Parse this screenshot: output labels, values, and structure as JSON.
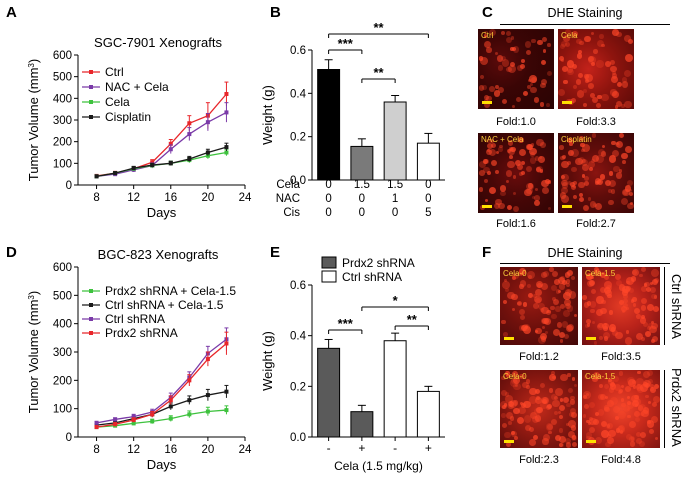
{
  "panels": {
    "A": "A",
    "B": "B",
    "C": "C",
    "D": "D",
    "E": "E",
    "F": "F"
  },
  "chart_data": [
    {
      "id": "A",
      "type": "line",
      "title": "SGC-7901 Xenografts",
      "xlabel": "Days",
      "ylabel": "Tumor Volume (mm³)",
      "xlim": [
        6,
        24
      ],
      "ylim": [
        0,
        600
      ],
      "xticks": [
        8,
        12,
        16,
        20,
        24
      ],
      "yticks": [
        0,
        100,
        200,
        300,
        400,
        500,
        600
      ],
      "legend_position": "top-left",
      "series": [
        {
          "name": "Ctrl",
          "color": "#e8262a",
          "marker": "square",
          "x": [
            8,
            10,
            12,
            14,
            16,
            18,
            20,
            22
          ],
          "y": [
            42,
            55,
            75,
            105,
            190,
            285,
            320,
            420
          ],
          "err": [
            6,
            8,
            10,
            12,
            20,
            35,
            60,
            55
          ]
        },
        {
          "name": "NAC + Cela",
          "color": "#7a3aa8",
          "marker": "square",
          "x": [
            8,
            10,
            12,
            14,
            16,
            18,
            20,
            22
          ],
          "y": [
            40,
            50,
            70,
            90,
            165,
            235,
            290,
            335
          ],
          "err": [
            5,
            8,
            10,
            12,
            20,
            30,
            40,
            45
          ]
        },
        {
          "name": "Cela",
          "color": "#3ec23e",
          "marker": "square",
          "x": [
            8,
            10,
            12,
            14,
            16,
            18,
            20,
            22
          ],
          "y": [
            40,
            55,
            75,
            90,
            100,
            115,
            135,
            150
          ],
          "err": [
            5,
            6,
            8,
            8,
            10,
            12,
            14,
            15
          ]
        },
        {
          "name": "Cisplatin",
          "color": "#1a1a1a",
          "marker": "square",
          "x": [
            8,
            10,
            12,
            14,
            16,
            18,
            20,
            22
          ],
          "y": [
            40,
            55,
            78,
            92,
            100,
            120,
            150,
            175
          ],
          "err": [
            5,
            6,
            8,
            8,
            10,
            12,
            15,
            18
          ]
        }
      ]
    },
    {
      "id": "B",
      "type": "bar",
      "ylabel": "Weight (g)",
      "ylim": [
        0,
        0.6
      ],
      "yticks": [
        "0.0",
        "0.2",
        "0.4",
        "0.6"
      ],
      "categories": [
        "1",
        "2",
        "3",
        "4"
      ],
      "values": [
        0.51,
        0.155,
        0.36,
        0.17
      ],
      "errors": [
        0.045,
        0.035,
        0.03,
        0.045
      ],
      "colors": [
        "#000000",
        "#7a7a7a",
        "#cfcfcf",
        "#ffffff"
      ],
      "conditions": [
        {
          "label": "Cela",
          "values": [
            "0",
            "1.5",
            "1.5",
            "0"
          ]
        },
        {
          "label": "NAC",
          "values": [
            "0",
            "0",
            "1",
            "0"
          ]
        },
        {
          "label": "Cis",
          "values": [
            "0",
            "0",
            "0",
            "5"
          ]
        }
      ],
      "significance": [
        {
          "from": 1,
          "to": 4,
          "label": "**"
        },
        {
          "from": 1,
          "to": 2,
          "label": "***"
        },
        {
          "from": 2,
          "to": 3,
          "label": "**"
        }
      ]
    },
    {
      "id": "D",
      "type": "line",
      "title": "BGC-823 Xenografts",
      "xlabel": "Days",
      "ylabel": "Tumor Volume (mm³)",
      "xlim": [
        6,
        24
      ],
      "ylim": [
        0,
        600
      ],
      "xticks": [
        8,
        12,
        16,
        20,
        24
      ],
      "yticks": [
        0,
        100,
        200,
        300,
        400,
        500,
        600
      ],
      "legend_position": "top-left",
      "series": [
        {
          "name": "Prdx2 shRNA + Cela-1.5",
          "color": "#3ec23e",
          "marker": "square",
          "x": [
            8,
            10,
            12,
            14,
            16,
            18,
            20,
            22
          ],
          "y": [
            35,
            40,
            48,
            55,
            65,
            80,
            90,
            95
          ],
          "err": [
            4,
            5,
            6,
            8,
            10,
            12,
            15,
            15
          ]
        },
        {
          "name": "Ctrl shRNA + Cela-1.5",
          "color": "#1a1a1a",
          "marker": "square",
          "x": [
            8,
            10,
            12,
            14,
            16,
            18,
            20,
            22
          ],
          "y": [
            42,
            50,
            65,
            80,
            108,
            130,
            148,
            160
          ],
          "err": [
            5,
            6,
            8,
            10,
            12,
            15,
            20,
            22
          ]
        },
        {
          "name": "Ctrl shRNA",
          "color": "#7a3aa8",
          "marker": "square",
          "x": [
            8,
            10,
            12,
            14,
            16,
            18,
            20,
            22
          ],
          "y": [
            50,
            62,
            72,
            88,
            140,
            210,
            295,
            345
          ],
          "err": [
            5,
            6,
            8,
            10,
            15,
            20,
            25,
            40
          ]
        },
        {
          "name": "Prdx2 shRNA",
          "color": "#e8262a",
          "marker": "square",
          "x": [
            8,
            10,
            12,
            14,
            16,
            18,
            20,
            22
          ],
          "y": [
            35,
            45,
            60,
            80,
            130,
            200,
            275,
            330
          ],
          "err": [
            5,
            6,
            8,
            10,
            15,
            20,
            25,
            40
          ]
        }
      ]
    },
    {
      "id": "E",
      "type": "bar",
      "ylabel": "Weight (g)",
      "xlabel": "Cela (1.5 mg/kg)",
      "ylim": [
        0,
        0.6
      ],
      "yticks": [
        "0.0",
        "0.2",
        "0.4",
        "0.6"
      ],
      "categories": [
        "-",
        "+",
        "-",
        "+"
      ],
      "values": [
        0.35,
        0.1,
        0.38,
        0.18
      ],
      "errors": [
        0.035,
        0.025,
        0.03,
        0.02
      ],
      "series_names": [
        "Prdx2 shRNA",
        "Ctrl shRNA"
      ],
      "colors": [
        "#5a5a5a",
        "#5a5a5a",
        "#ffffff",
        "#ffffff"
      ],
      "significance": [
        {
          "from": 2,
          "to": 4,
          "label": "*"
        },
        {
          "from": 1,
          "to": 2,
          "label": "***"
        },
        {
          "from": 3,
          "to": 4,
          "label": "**"
        }
      ]
    }
  ],
  "panelC": {
    "header": "DHE Staining",
    "images": [
      {
        "label": "Ctrl",
        "fold": "Fold:1.0"
      },
      {
        "label": "Cela",
        "fold": "Fold:3.3"
      },
      {
        "label": "NAC + Cela",
        "fold": "Fold:1.6"
      },
      {
        "label": "Cisplatin",
        "fold": "Fold:2.7"
      }
    ]
  },
  "panelF": {
    "header": "DHE Staining",
    "row_labels": [
      "Ctrl shRNA",
      "Prdx2 shRNA"
    ],
    "images": [
      {
        "label": "Cela-0",
        "fold": "Fold:1.2"
      },
      {
        "label": "Cela-1.5",
        "fold": "Fold:3.5"
      },
      {
        "label": "Cela-0",
        "fold": "Fold:2.3"
      },
      {
        "label": "Cela-1.5",
        "fold": "Fold:4.8"
      }
    ]
  }
}
